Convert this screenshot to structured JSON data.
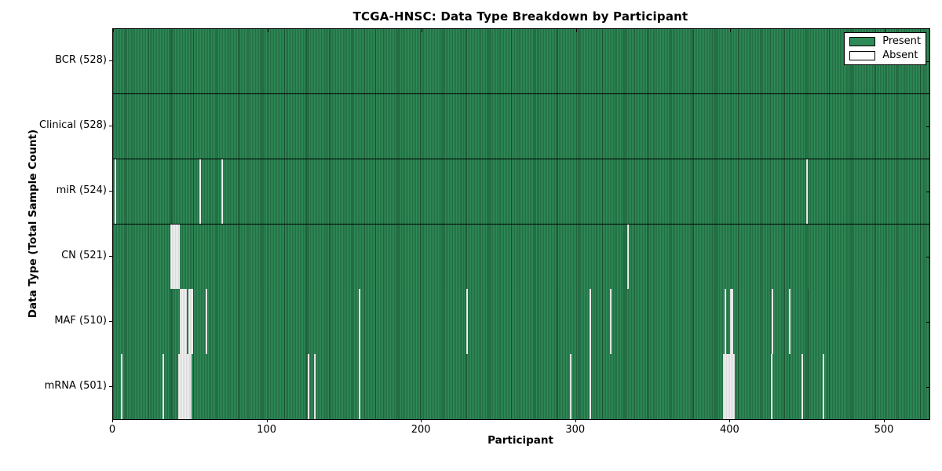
{
  "title": "TCGA-HNSC: Data Type Breakdown by Participant",
  "axes": {
    "xlabel": "Participant",
    "ylabel": "Data Type (Total Sample Count)"
  },
  "colors": {
    "present": "#2e8b57",
    "absent": "#ffffff",
    "edge": "#000000",
    "background": "#ffffff"
  },
  "chart_data": {
    "type": "heatmap",
    "title": "TCGA-HNSC: Data Type Breakdown by Participant",
    "xlabel": "Participant",
    "ylabel": "Data Type (Total Sample Count)",
    "x_ticks": [
      0,
      100,
      200,
      300,
      400,
      500
    ],
    "x_range": [
      0,
      529
    ],
    "total_participants": 528,
    "grid": false,
    "legend_position": "upper right",
    "legend": [
      {
        "label": "Present",
        "color": "#2e8b57"
      },
      {
        "label": "Absent",
        "color": "#ffffff"
      }
    ],
    "rows": [
      {
        "label": "BCR (528)",
        "data_type": "BCR",
        "present_count": 528,
        "absent_count": 0,
        "absent_runs": []
      },
      {
        "label": "Clinical (528)",
        "data_type": "Clinical",
        "present_count": 528,
        "absent_count": 0,
        "absent_runs": []
      },
      {
        "label": "miR (524)",
        "data_type": "miR",
        "present_count": 524,
        "absent_count": 4,
        "absent_runs": [
          [
            1,
            1
          ],
          [
            56,
            1
          ],
          [
            70,
            1
          ],
          [
            449,
            1
          ]
        ]
      },
      {
        "label": "CN (521)",
        "data_type": "CN",
        "present_count": 521,
        "absent_count": 7,
        "absent_runs": [
          [
            37,
            6
          ],
          [
            333,
            1
          ]
        ]
      },
      {
        "label": "MAF (510)",
        "data_type": "MAF",
        "present_count": 510,
        "absent_count": 18,
        "absent_runs": [
          [
            43,
            5
          ],
          [
            49,
            3
          ],
          [
            60,
            1
          ],
          [
            159,
            1
          ],
          [
            229,
            1
          ],
          [
            309,
            1
          ],
          [
            322,
            1
          ],
          [
            396,
            1
          ],
          [
            400,
            2
          ],
          [
            427,
            1
          ],
          [
            438,
            1
          ]
        ]
      },
      {
        "label": "mRNA (501)",
        "data_type": "mRNA",
        "present_count": 501,
        "absent_count": 27,
        "absent_runs": [
          [
            5,
            1
          ],
          [
            32,
            1
          ],
          [
            42,
            9
          ],
          [
            126,
            1
          ],
          [
            130,
            1
          ],
          [
            159,
            1
          ],
          [
            296,
            1
          ],
          [
            309,
            1
          ],
          [
            395,
            8
          ],
          [
            426,
            1
          ],
          [
            446,
            1
          ],
          [
            460,
            1
          ]
        ]
      }
    ]
  }
}
